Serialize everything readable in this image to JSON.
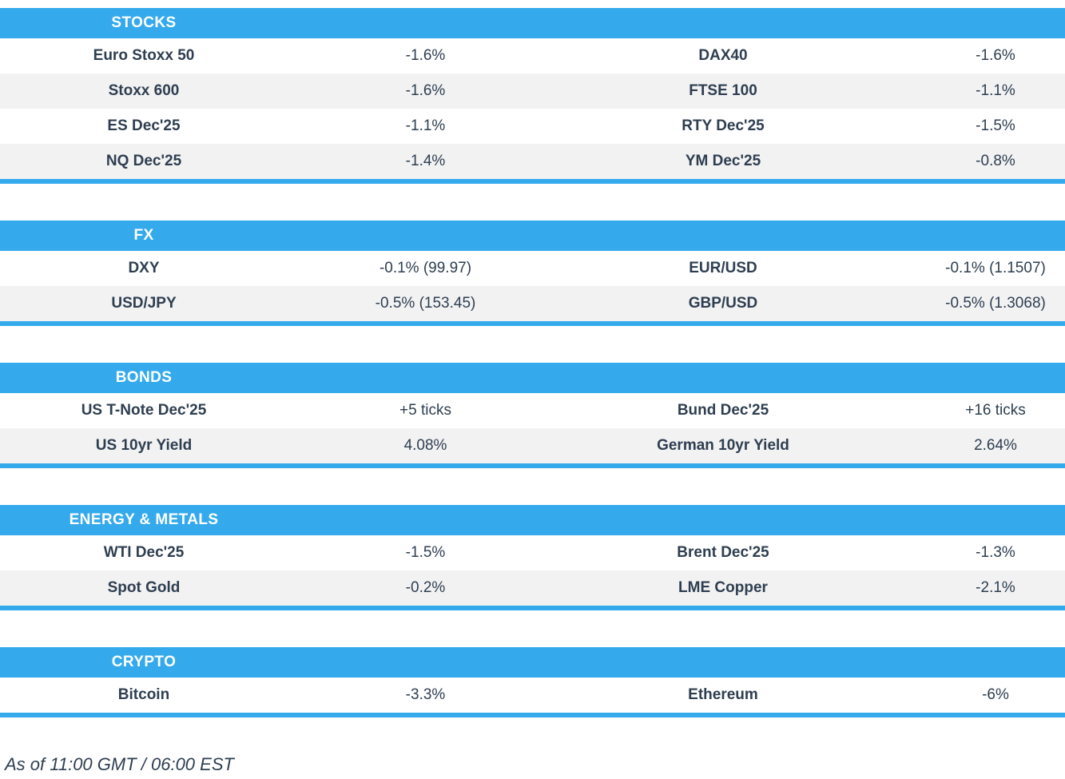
{
  "colors": {
    "accent": "#34aaec",
    "row_alt": "#f2f2f3",
    "text": "#2e3e50"
  },
  "sections": [
    {
      "title": "STOCKS",
      "rows": [
        [
          "Euro Stoxx 50",
          "-1.6%",
          "DAX40",
          "-1.6%"
        ],
        [
          "Stoxx 600",
          "-1.6%",
          "FTSE 100",
          "-1.1%"
        ],
        [
          "ES Dec'25",
          "-1.1%",
          "RTY Dec'25",
          "-1.5%"
        ],
        [
          "NQ Dec'25",
          "-1.4%",
          "YM Dec'25",
          "-0.8%"
        ]
      ]
    },
    {
      "title": "FX",
      "rows": [
        [
          "DXY",
          "-0.1% (99.97)",
          "EUR/USD",
          "-0.1% (1.1507)"
        ],
        [
          "USD/JPY",
          "-0.5% (153.45)",
          "GBP/USD",
          "-0.5% (1.3068)"
        ]
      ]
    },
    {
      "title": "BONDS",
      "rows": [
        [
          "US T-Note Dec'25",
          "+5 ticks",
          "Bund Dec'25",
          "+16 ticks"
        ],
        [
          "US 10yr Yield",
          "4.08%",
          "German 10yr Yield",
          "2.64%"
        ]
      ]
    },
    {
      "title": "ENERGY & METALS",
      "rows": [
        [
          "WTI Dec'25",
          "-1.5%",
          "Brent Dec'25",
          "-1.3%"
        ],
        [
          "Spot Gold",
          "-0.2%",
          "LME Copper",
          "-2.1%"
        ]
      ]
    },
    {
      "title": "CRYPTO",
      "rows": [
        [
          "Bitcoin",
          "-3.3%",
          "Ethereum",
          "-6%"
        ]
      ]
    }
  ],
  "footer": {
    "as_of": "As of 11:00 GMT / 06:00 EST"
  }
}
